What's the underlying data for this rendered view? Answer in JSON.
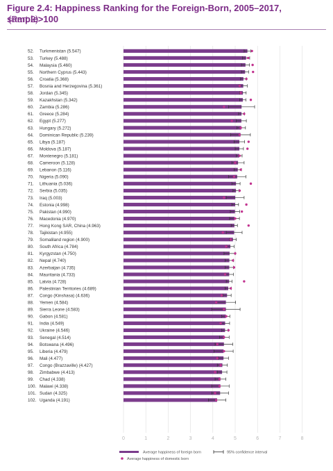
{
  "figure": {
    "title": "Figure 2.4: Happiness Ranking for the Foreign-Born, 2005–2017, sample>100",
    "subtitle": "(Part 2)"
  },
  "colors": {
    "bar": "#7b3c8c",
    "dot": "#c2338f",
    "whisker": "#333333",
    "grid": "#dedede",
    "title": "#7b2a86",
    "tick": "#b5b5b5",
    "text": "#333333"
  },
  "chart_data": {
    "type": "bar",
    "orientation": "horizontal",
    "title": "Happiness Ranking for the Foreign-Born, 2005–2017, sample>100",
    "xlim": [
      0,
      8
    ],
    "xticks": [
      0,
      1,
      2,
      3,
      4,
      5,
      6,
      7,
      8
    ],
    "grid": true,
    "legend_position": "bottom",
    "legend": {
      "foreign": "Average happiness of foreign born",
      "domestic": "Average happiness of domestic born",
      "ci": "95% confidence interval"
    },
    "categories": [
      "52. Turkmenistan (5.547)",
      "53. Turkey (5.488)",
      "54. Malaysia (5.460)",
      "55. Northern Cyprus (5.443)",
      "56. Croatia (5.368)",
      "57. Bosnia and Herzegovina (5.361)",
      "58. Jordan (5.345)",
      "59. Kazakhstan (5.342)",
      "60. Zambia (5.286)",
      "61. Greece (5.284)",
      "62. Egypt (5.277)",
      "63. Hungary (5.272)",
      "64. Dominican Republic (5.239)",
      "65. Libya (5.187)",
      "66. Moldova (5.187)",
      "67. Montenegro (5.181)",
      "68. Cameroon (5.128)",
      "69. Lebanon (5.116)",
      "70. Nigeria (5.090)",
      "71. Lithuania (5.036)",
      "72. Serbia (5.035)",
      "73. Iraq (5.003)",
      "74. Estonia (4.998)",
      "75. Pakistan (4.990)",
      "76. Macedonia (4.970)",
      "77. Hong Kong SAR, China (4.963)",
      "78. Tajikistan (4.955)",
      "79. Somaliland region (4.900)",
      "80. South Africa (4.784)",
      "81. Kyrgyzstan (4.750)",
      "82. Nepal (4.740)",
      "83. Azerbaijan (4.735)",
      "84. Mauritania (4.733)",
      "85. Latvia (4.728)",
      "86. Palestinian Territories (4.689)",
      "87. Congo (Kinshasa) (4.636)",
      "88. Yemen (4.584)",
      "89. Sierra Leone (4.583)",
      "90. Gabon (4.581)",
      "91. India (4.549)",
      "92. Ukraine (4.546)",
      "93. Senegal (4.514)",
      "94. Botswana (4.496)",
      "95. Liberia (4.479)",
      "96. Mali (4.477)",
      "97. Congo (Brazzaville) (4.427)",
      "98. Zimbabwe (4.413)",
      "99. Chad (4.338)",
      "100. Malawi (4.338)",
      "101. Sudan (4.325)",
      "102. Uganda (4.191)"
    ],
    "series": [
      {
        "name": "Average happiness of foreign born",
        "values": [
          5.547,
          5.488,
          5.46,
          5.443,
          5.368,
          5.361,
          5.345,
          5.342,
          5.286,
          5.284,
          5.277,
          5.272,
          5.239,
          5.187,
          5.187,
          5.181,
          5.128,
          5.116,
          5.09,
          5.036,
          5.035,
          5.003,
          4.998,
          4.99,
          4.97,
          4.963,
          4.955,
          4.9,
          4.784,
          4.75,
          4.74,
          4.735,
          4.733,
          4.728,
          4.689,
          4.636,
          4.584,
          4.583,
          4.581,
          4.549,
          4.546,
          4.514,
          4.496,
          4.479,
          4.477,
          4.427,
          4.413,
          4.338,
          4.338,
          4.325,
          4.191
        ],
        "ci_low": [
          5.4,
          5.33,
          5.28,
          5.28,
          5.24,
          5.18,
          5.2,
          5.2,
          4.7,
          5.15,
          5.05,
          5.08,
          4.8,
          4.95,
          5.0,
          5.05,
          4.85,
          4.95,
          4.7,
          4.85,
          4.9,
          4.6,
          4.85,
          4.78,
          4.75,
          4.82,
          4.6,
          4.75,
          4.62,
          4.5,
          4.55,
          4.55,
          4.55,
          4.6,
          4.55,
          4.45,
          4.15,
          3.95,
          4.4,
          4.35,
          4.4,
          4.3,
          4.1,
          4.05,
          4.25,
          4.2,
          4.2,
          4.1,
          3.95,
          3.95,
          3.8
        ],
        "ci_high": [
          5.7,
          5.65,
          5.64,
          5.6,
          5.5,
          5.54,
          5.49,
          5.48,
          5.87,
          5.42,
          5.5,
          5.46,
          5.68,
          5.42,
          5.37,
          5.31,
          5.4,
          5.28,
          5.48,
          5.22,
          5.17,
          5.4,
          5.15,
          5.2,
          5.19,
          5.1,
          5.31,
          5.05,
          4.95,
          5.0,
          4.93,
          4.92,
          4.92,
          4.86,
          4.83,
          4.82,
          5.02,
          5.22,
          4.76,
          4.75,
          4.69,
          4.73,
          4.89,
          4.91,
          4.7,
          4.65,
          4.63,
          4.58,
          4.73,
          4.7,
          4.58
        ]
      },
      {
        "name": "Average happiness of domestic born",
        "values": [
          5.75,
          5.58,
          5.78,
          5.8,
          5.5,
          5.2,
          5.25,
          5.7,
          4.5,
          5.4,
          4.85,
          5.25,
          5.2,
          5.6,
          5.55,
          5.2,
          5.0,
          5.25,
          4.95,
          5.7,
          5.2,
          4.5,
          5.5,
          5.3,
          5.0,
          5.6,
          4.45,
          4.8,
          4.6,
          5.0,
          4.9,
          4.95,
          4.55,
          5.4,
          4.8,
          4.4,
          4.15,
          4.5,
          4.6,
          4.35,
          4.7,
          4.5,
          4.2,
          4.5,
          4.2,
          4.35,
          4.1,
          4.3,
          4.3,
          4.1,
          4.15
        ]
      }
    ]
  }
}
